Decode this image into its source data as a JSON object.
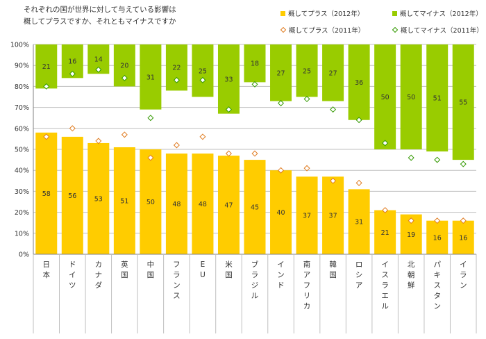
{
  "chart_data": {
    "type": "bar",
    "title_lines": [
      "それぞれの国が世界に対して与えている影響は",
      "概してプラスですか、それともマイナスですか"
    ],
    "categories": [
      "日本",
      "ドイツ",
      "カナダ",
      "英国",
      "中国",
      "フランス",
      "EU",
      "米国",
      "ブラジル",
      "インド",
      "南アフリカ",
      "韓国",
      "ロシア",
      "イスラエル",
      "北朝鮮",
      "パキスタン",
      "イラン"
    ],
    "series": [
      {
        "name": "概してプラス（2012年）",
        "kind": "bar",
        "color": "#ffcc00",
        "values": [
          58,
          56,
          53,
          51,
          50,
          48,
          48,
          47,
          45,
          40,
          37,
          37,
          31,
          21,
          19,
          16,
          16
        ]
      },
      {
        "name": "概してマイナス（2012年）",
        "kind": "bar",
        "color": "#99cc00",
        "values": [
          21,
          16,
          14,
          20,
          31,
          22,
          25,
          33,
          18,
          27,
          25,
          27,
          36,
          50,
          50,
          51,
          55
        ]
      },
      {
        "name": "概してプラス（2011年）",
        "kind": "marker",
        "color": "#e07b1f",
        "values": [
          56,
          60,
          54,
          57,
          46,
          52,
          56,
          48,
          48,
          40,
          41,
          35,
          34,
          21,
          16,
          16,
          16
        ]
      },
      {
        "name": "概してマイナス（2011年）",
        "kind": "marker",
        "color": "#339900",
        "values": [
          80,
          86,
          88,
          84,
          65,
          83,
          83,
          69,
          81,
          72,
          74,
          69,
          64,
          53,
          46,
          45,
          43
        ]
      }
    ],
    "y_ticks": [
      "0%",
      "10%",
      "20%",
      "30%",
      "40%",
      "50%",
      "60%",
      "70%",
      "80%",
      "90%",
      "100%"
    ],
    "ylim": [
      0,
      100
    ],
    "grid": true,
    "legend_position": "top-right"
  }
}
